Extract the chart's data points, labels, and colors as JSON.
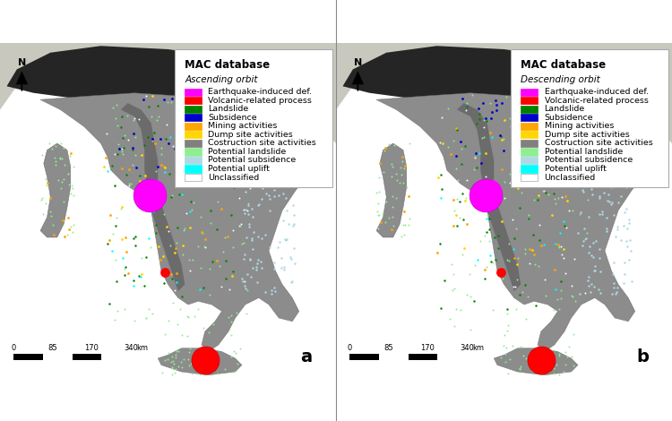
{
  "title_a": "MAC database\nAscending orbit",
  "title_b": "MAC database\nDescending orbit",
  "label_a": "a",
  "label_b": "b",
  "legend_items": [
    {
      "label": "Earthquake-induced def.",
      "color": "#FF00FF"
    },
    {
      "label": "Volcanic-related process",
      "color": "#FF0000"
    },
    {
      "label": "Landslide",
      "color": "#008000"
    },
    {
      "label": "Subsidence",
      "color": "#0000CD"
    },
    {
      "label": "Mining activities",
      "color": "#FFA500"
    },
    {
      "label": "Dump site activities",
      "color": "#FFD700"
    },
    {
      "label": "Costruction site activities",
      "color": "#808080"
    },
    {
      "label": "Potential landslide",
      "color": "#90EE90"
    },
    {
      "label": "Potential subsidence",
      "color": "#ADD8E6"
    },
    {
      "label": "Potential uplift",
      "color": "#00FFFF"
    },
    {
      "label": "Unclassified",
      "color": "#FFFFFF"
    }
  ],
  "map_bg_sea": "#B8D8E8",
  "scalebar_ticks": [
    "0",
    "85",
    "170",
    "340"
  ],
  "scalebar_unit": "km"
}
